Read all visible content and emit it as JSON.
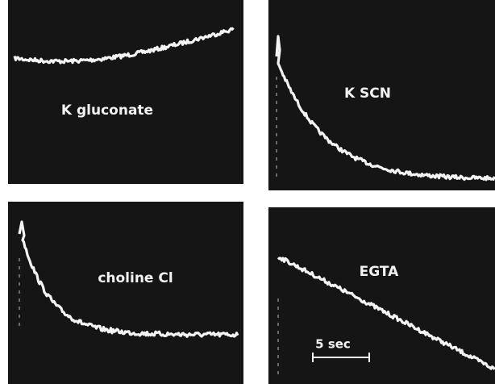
{
  "panels": [
    {
      "label": "K gluconate"
    },
    {
      "label": "K SCN"
    },
    {
      "label": "choline Cl"
    },
    {
      "label": "EGTA"
    }
  ],
  "scale_bar": {
    "label": "5 sec"
  }
}
